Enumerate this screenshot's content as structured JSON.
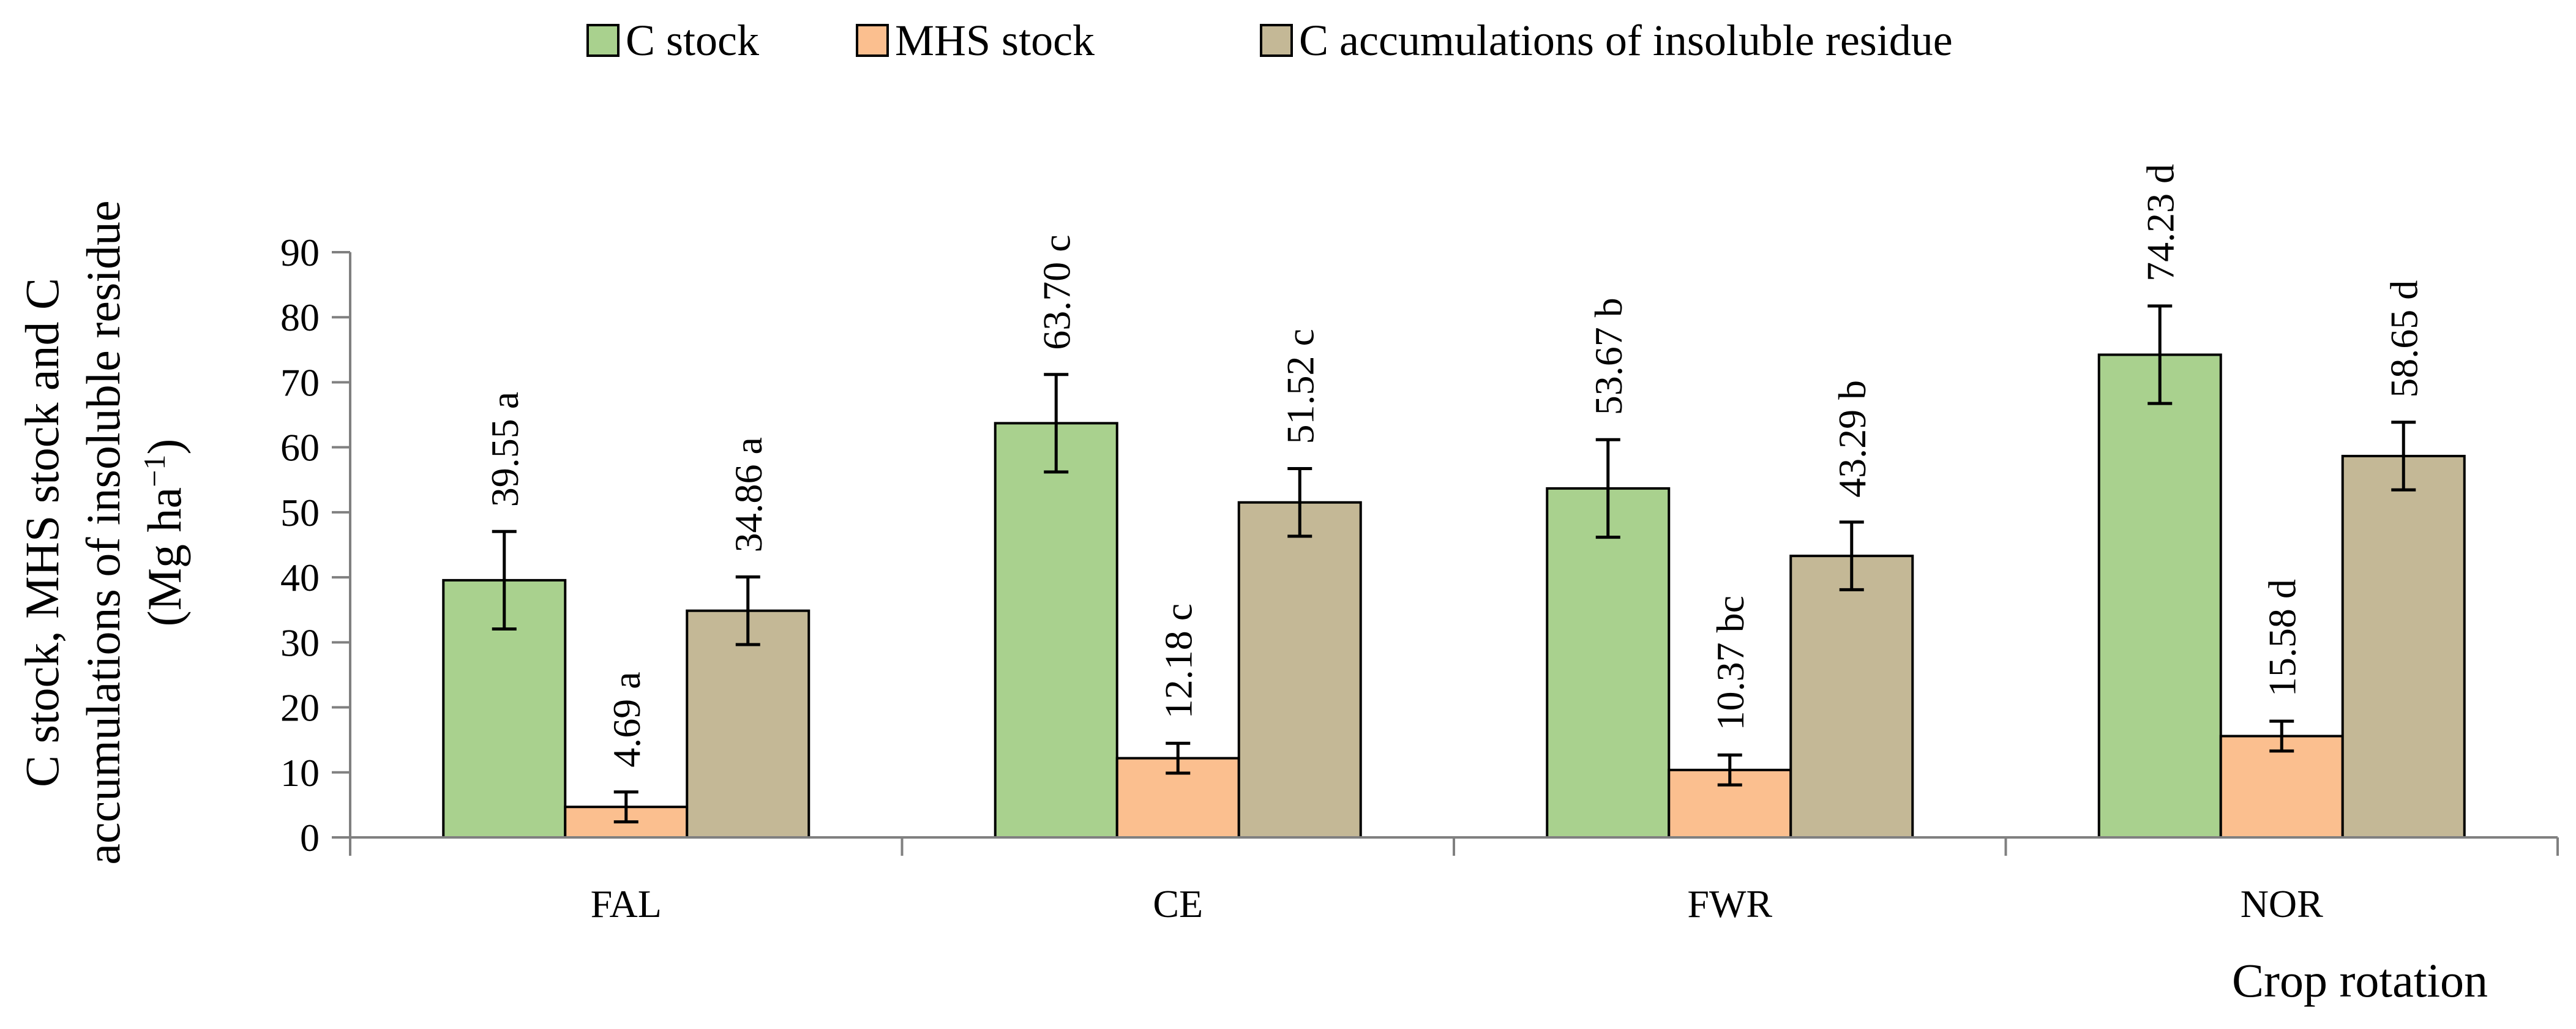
{
  "chart_data": {
    "type": "bar",
    "title": "",
    "xlabel": "Crop rotation",
    "ylabel": {
      "line1": "C stock, MHS stock and C",
      "line2": "accumulations of insoluble residue",
      "line3_prefix": "(Mg ha",
      "line3_sup": "−1",
      "line3_suffix": ")"
    },
    "categories": [
      "FAL",
      "CE",
      "FWR",
      "NOR"
    ],
    "ylim": [
      0,
      90
    ],
    "yticks": [
      0,
      10,
      20,
      30,
      40,
      50,
      60,
      70,
      80,
      90
    ],
    "ytick_labels": [
      "0",
      "10",
      "20",
      "30",
      "40",
      "50",
      "60",
      "70",
      "80",
      "90"
    ],
    "grid": false,
    "legend_position": "top-center",
    "series": [
      {
        "name": "C stock",
        "color": "#a9d18e",
        "values": [
          39.55,
          63.7,
          53.67,
          74.23
        ],
        "errors": [
          7.5,
          7.5,
          7.5,
          7.5
        ],
        "labels": [
          "39.55 a",
          "63.70 c",
          "53.67 b",
          "74.23 d"
        ]
      },
      {
        "name": "MHS stock",
        "color": "#fbbf8f",
        "values": [
          4.69,
          12.18,
          10.37,
          15.58
        ],
        "errors": [
          2.3,
          2.3,
          2.3,
          2.3
        ],
        "labels": [
          "4.69 a",
          "12.18 c",
          "10.37 bc",
          "15.58 d"
        ]
      },
      {
        "name": "C accumulations of insoluble residue",
        "color": "#c4b896",
        "values": [
          34.86,
          51.52,
          43.29,
          58.65
        ],
        "errors": [
          5.2,
          5.2,
          5.2,
          5.2
        ],
        "labels": [
          "34.86 a",
          "51.52 c",
          "43.29 b",
          "58.65 d"
        ]
      }
    ]
  }
}
